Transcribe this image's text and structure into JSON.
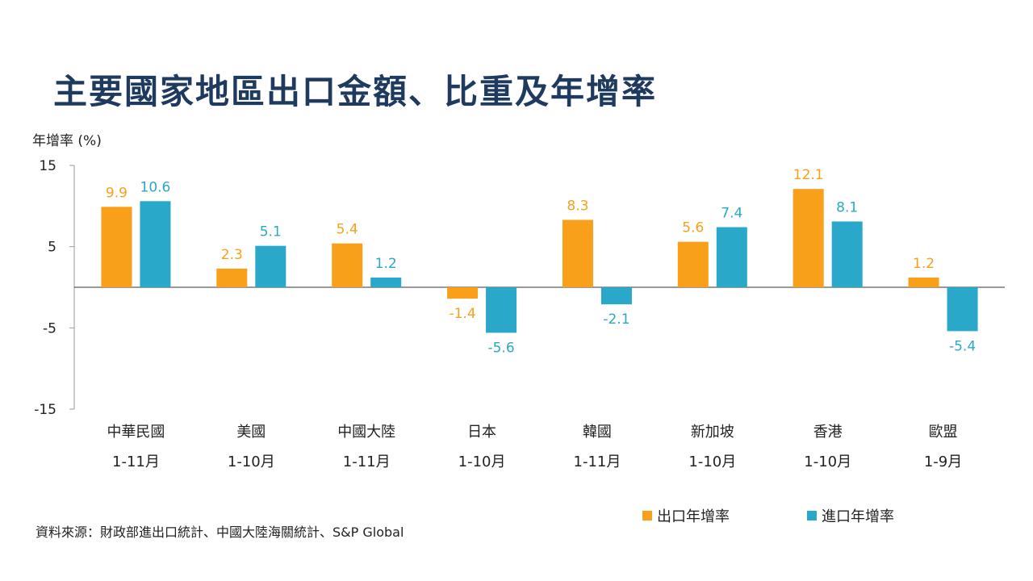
{
  "title": "主要國家地區出口金額、比重及年增率",
  "source": "資料來源：財政部進出口統計、中國大陸海關統計、S&P Global",
  "colors": {
    "export": "#f8a01a",
    "import": "#2aa8c9",
    "title": "#1f3a5f"
  },
  "legend": {
    "export_label": "出口年增率",
    "import_label": "進口年增率"
  },
  "chart_data": {
    "type": "bar",
    "ylabel": "年增率 (%)",
    "xlabel": "",
    "ylim": [
      -15,
      15
    ],
    "yticks": [
      15,
      5,
      -5,
      -15
    ],
    "categories": [
      "中華民國",
      "美國",
      "中國大陸",
      "日本",
      "韓國",
      "新加坡",
      "香港",
      "歐盟"
    ],
    "periods": [
      "1-11月",
      "1-10月",
      "1-11月",
      "1-10月",
      "1-11月",
      "1-10月",
      "1-10月",
      "1-9月"
    ],
    "series": [
      {
        "name": "出口年增率",
        "values": [
          9.9,
          2.3,
          5.4,
          -1.4,
          8.3,
          5.6,
          12.1,
          1.2
        ],
        "labels": [
          "9.9",
          "2.3",
          "5.4",
          "-1.4",
          "8.3",
          "5.6",
          "12.1",
          "1.2"
        ]
      },
      {
        "name": "進口年增率",
        "values": [
          10.6,
          5.1,
          1.2,
          -5.6,
          -2.1,
          7.4,
          8.1,
          -5.4
        ],
        "labels": [
          "10.6",
          "5.1",
          "1.2",
          "-5.6",
          "-2.1",
          "7.4",
          "8.1",
          "-5.4"
        ]
      }
    ],
    "legend_position": "bottom-right",
    "grid": false
  }
}
